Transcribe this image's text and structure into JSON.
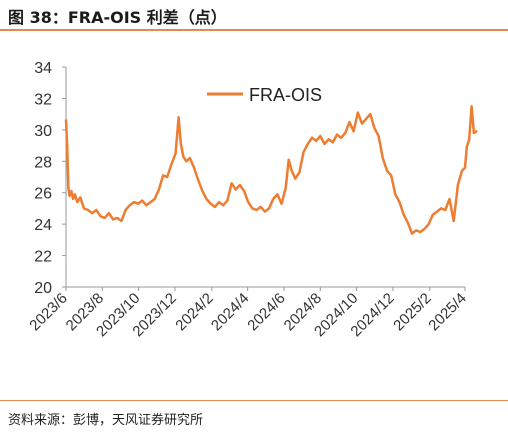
{
  "figure": {
    "title": "图 38：FRA-OIS 利差（点）",
    "source": "资料来源：彭博，天风证券研究所"
  },
  "colors": {
    "series": "#ed7d31",
    "accent_rule": "#e9884a",
    "axis": "#999999"
  },
  "chart_data": {
    "type": "line",
    "title": "FRA-OIS 利差（点）",
    "xlabel": "",
    "ylabel": "",
    "ylim": [
      20,
      34
    ],
    "yticks": [
      20,
      22,
      24,
      26,
      28,
      30,
      32,
      34
    ],
    "xlim": [
      "2023-06",
      "2025-04"
    ],
    "xticks": [
      "2023/6",
      "2023/8",
      "2023/10",
      "2023/12",
      "2024/2",
      "2024/4",
      "2024/6",
      "2024/8",
      "2024/10",
      "2024/12",
      "2025/2",
      "2025/4"
    ],
    "grid": false,
    "legend_position": "top-center",
    "series": [
      {
        "name": "FRA-OIS",
        "x": [
          "2023-06-01",
          "2023-06-03",
          "2023-06-05",
          "2023-06-07",
          "2023-06-10",
          "2023-06-13",
          "2023-06-16",
          "2023-06-20",
          "2023-06-25",
          "2023-07-01",
          "2023-07-08",
          "2023-07-15",
          "2023-07-22",
          "2023-07-29",
          "2023-08-05",
          "2023-08-12",
          "2023-08-19",
          "2023-08-26",
          "2023-09-02",
          "2023-09-09",
          "2023-09-16",
          "2023-09-23",
          "2023-09-30",
          "2023-10-07",
          "2023-10-14",
          "2023-10-21",
          "2023-10-28",
          "2023-11-04",
          "2023-11-11",
          "2023-11-18",
          "2023-11-25",
          "2023-12-02",
          "2023-12-07",
          "2023-12-11",
          "2023-12-15",
          "2023-12-20",
          "2023-12-26",
          "2024-01-02",
          "2024-01-09",
          "2024-01-16",
          "2024-01-23",
          "2024-01-30",
          "2024-02-06",
          "2024-02-13",
          "2024-02-20",
          "2024-02-27",
          "2024-03-05",
          "2024-03-12",
          "2024-03-19",
          "2024-03-26",
          "2024-04-02",
          "2024-04-09",
          "2024-04-16",
          "2024-04-23",
          "2024-04-30",
          "2024-05-07",
          "2024-05-14",
          "2024-05-21",
          "2024-05-28",
          "2024-06-04",
          "2024-06-09",
          "2024-06-14",
          "2024-06-20",
          "2024-06-27",
          "2024-07-04",
          "2024-07-11",
          "2024-07-18",
          "2024-07-25",
          "2024-08-01",
          "2024-08-08",
          "2024-08-15",
          "2024-08-22",
          "2024-08-29",
          "2024-09-05",
          "2024-09-12",
          "2024-09-19",
          "2024-09-26",
          "2024-10-03",
          "2024-10-10",
          "2024-10-17",
          "2024-10-24",
          "2024-10-31",
          "2024-11-07",
          "2024-11-14",
          "2024-11-21",
          "2024-11-28",
          "2024-12-05",
          "2024-12-12",
          "2024-12-19",
          "2024-12-26",
          "2025-01-02",
          "2025-01-09",
          "2025-01-16",
          "2025-01-23",
          "2025-01-30",
          "2025-02-06",
          "2025-02-13",
          "2025-02-20",
          "2025-02-27",
          "2025-03-06",
          "2025-03-13",
          "2025-03-20",
          "2025-03-27",
          "2025-04-01",
          "2025-04-04",
          "2025-04-08",
          "2025-04-12",
          "2025-04-16",
          "2025-04-20"
        ],
        "values": [
          30.6,
          29.0,
          26.3,
          25.8,
          26.1,
          25.6,
          25.9,
          25.4,
          25.7,
          25.0,
          24.9,
          24.7,
          24.9,
          24.5,
          24.4,
          24.7,
          24.3,
          24.4,
          24.2,
          24.9,
          25.2,
          25.4,
          25.3,
          25.5,
          25.2,
          25.4,
          25.6,
          26.2,
          27.1,
          27.0,
          27.8,
          28.5,
          30.8,
          29.1,
          28.3,
          28.0,
          28.2,
          27.6,
          26.8,
          26.1,
          25.6,
          25.3,
          25.1,
          25.4,
          25.2,
          25.5,
          26.6,
          26.2,
          26.5,
          26.1,
          25.4,
          25.0,
          24.9,
          25.1,
          24.8,
          25.0,
          25.6,
          25.9,
          25.3,
          26.3,
          28.1,
          27.4,
          26.9,
          27.3,
          28.6,
          29.1,
          29.5,
          29.3,
          29.6,
          29.1,
          29.4,
          29.2,
          29.7,
          29.5,
          29.8,
          30.5,
          29.9,
          31.1,
          30.4,
          30.7,
          31.0,
          30.1,
          29.6,
          28.2,
          27.4,
          27.1,
          25.9,
          25.4,
          24.6,
          24.1,
          23.4,
          23.6,
          23.5,
          23.7,
          24.0,
          24.6,
          24.8,
          25.0,
          24.9,
          25.6,
          24.2,
          26.5,
          27.4,
          27.6,
          28.9,
          29.4,
          31.5,
          29.8,
          29.9
        ]
      }
    ]
  }
}
